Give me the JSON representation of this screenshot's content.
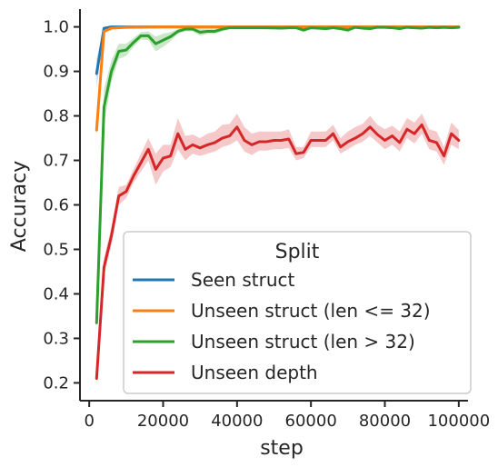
{
  "chart_data": {
    "type": "line",
    "title": "",
    "xlabel": "step",
    "ylabel": "Accuracy",
    "xlim": [
      -2500,
      102500
    ],
    "ylim": [
      0.16,
      1.04
    ],
    "xticks": [
      0,
      20000,
      40000,
      60000,
      80000,
      100000
    ],
    "yticks": [
      0.2,
      0.3,
      0.4,
      0.5,
      0.6,
      0.7,
      0.8,
      0.9,
      1.0
    ],
    "xtick_labels": [
      "0",
      "20000",
      "40000",
      "60000",
      "80000",
      "100000"
    ],
    "ytick_labels": [
      "0.2",
      "0.3",
      "0.4",
      "0.5",
      "0.6",
      "0.7",
      "0.8",
      "0.9",
      "1.0"
    ],
    "grid": false,
    "legend": {
      "title": "Split",
      "placement": "lower-right"
    },
    "series": [
      {
        "name": "Seen struct",
        "color": "#1f77b4",
        "x": [
          2000,
          4000,
          6000,
          10000,
          20000,
          40000,
          60000,
          80000,
          100000
        ],
        "y": [
          0.895,
          0.997,
          1.0,
          1.0,
          1.0,
          1.0,
          1.0,
          1.0,
          1.0
        ],
        "lower": [
          0.862,
          0.994,
          1.0,
          1.0,
          1.0,
          1.0,
          1.0,
          1.0,
          1.0
        ],
        "upper": [
          0.928,
          1.0,
          1.0,
          1.0,
          1.0,
          1.0,
          1.0,
          1.0,
          1.0
        ]
      },
      {
        "name": "Unseen struct (len <= 32)",
        "color": "#ff7f0e",
        "x": [
          2000,
          4000,
          6000,
          10000,
          20000,
          40000,
          60000,
          80000,
          100000
        ],
        "y": [
          0.768,
          0.99,
          0.997,
          0.999,
          1.0,
          1.0,
          1.0,
          1.0,
          1.0
        ],
        "lower": [
          0.75,
          0.985,
          0.995,
          0.998,
          1.0,
          1.0,
          1.0,
          1.0,
          1.0
        ],
        "upper": [
          0.786,
          0.995,
          0.999,
          1.0,
          1.0,
          1.0,
          1.0,
          1.0,
          1.0
        ]
      },
      {
        "name": "Unseen struct (len > 32)",
        "color": "#2ca02c",
        "x": [
          2000,
          4000,
          6000,
          8000,
          10000,
          12000,
          14000,
          16000,
          18000,
          20000,
          22000,
          24000,
          26000,
          28000,
          30000,
          32000,
          34000,
          36000,
          38000,
          40000,
          44000,
          48000,
          52000,
          54000,
          56000,
          58000,
          60000,
          62000,
          64000,
          66000,
          68000,
          70000,
          72000,
          74000,
          76000,
          78000,
          80000,
          82000,
          84000,
          86000,
          88000,
          90000,
          92000,
          94000,
          96000,
          98000,
          100000
        ],
        "y": [
          0.335,
          0.82,
          0.9,
          0.945,
          0.948,
          0.965,
          0.98,
          0.98,
          0.962,
          0.97,
          0.978,
          0.99,
          0.995,
          0.995,
          0.988,
          0.99,
          0.99,
          0.995,
          0.998,
          0.998,
          0.998,
          0.998,
          0.997,
          0.998,
          0.998,
          0.993,
          0.998,
          0.997,
          0.996,
          0.998,
          0.996,
          0.993,
          0.999,
          0.997,
          0.996,
          0.999,
          0.999,
          0.998,
          0.996,
          0.999,
          0.998,
          0.997,
          0.999,
          0.998,
          0.999,
          0.998,
          0.999
        ],
        "lower": [
          0.325,
          0.78,
          0.875,
          0.928,
          0.935,
          0.955,
          0.972,
          0.97,
          0.945,
          0.955,
          0.968,
          0.985,
          0.99,
          0.99,
          0.98,
          0.984,
          0.984,
          0.99,
          0.995,
          0.995,
          0.995,
          0.995,
          0.994,
          0.995,
          0.995,
          0.988,
          0.995,
          0.994,
          0.992,
          0.995,
          0.992,
          0.988,
          0.997,
          0.994,
          0.992,
          0.997,
          0.997,
          0.995,
          0.992,
          0.997,
          0.995,
          0.994,
          0.997,
          0.995,
          0.997,
          0.995,
          0.997
        ],
        "upper": [
          0.345,
          0.86,
          0.925,
          0.962,
          0.962,
          0.975,
          0.988,
          0.99,
          0.978,
          0.985,
          0.988,
          0.995,
          1.0,
          1.0,
          0.996,
          0.996,
          0.996,
          1.0,
          1.0,
          1.0,
          1.0,
          1.0,
          1.0,
          1.0,
          1.0,
          0.998,
          1.0,
          1.0,
          1.0,
          1.0,
          1.0,
          0.998,
          1.0,
          1.0,
          1.0,
          1.0,
          1.0,
          1.0,
          1.0,
          1.0,
          1.0,
          1.0,
          1.0,
          1.0,
          1.0,
          1.0,
          1.0
        ]
      },
      {
        "name": "Unseen depth",
        "color": "#d62728",
        "x": [
          2000,
          4000,
          6000,
          8000,
          10000,
          12000,
          14000,
          16000,
          18000,
          20000,
          22000,
          24000,
          26000,
          28000,
          30000,
          32000,
          34000,
          36000,
          38000,
          40000,
          42000,
          44000,
          46000,
          48000,
          50000,
          52000,
          54000,
          56000,
          58000,
          60000,
          62000,
          64000,
          66000,
          68000,
          70000,
          72000,
          74000,
          76000,
          78000,
          80000,
          82000,
          84000,
          86000,
          88000,
          90000,
          92000,
          94000,
          96000,
          98000,
          100000
        ],
        "y": [
          0.21,
          0.46,
          0.53,
          0.62,
          0.63,
          0.665,
          0.695,
          0.725,
          0.68,
          0.705,
          0.71,
          0.76,
          0.725,
          0.735,
          0.728,
          0.735,
          0.74,
          0.75,
          0.755,
          0.775,
          0.745,
          0.735,
          0.742,
          0.742,
          0.745,
          0.745,
          0.748,
          0.715,
          0.718,
          0.745,
          0.745,
          0.745,
          0.76,
          0.73,
          0.742,
          0.75,
          0.76,
          0.775,
          0.758,
          0.745,
          0.755,
          0.74,
          0.77,
          0.76,
          0.78,
          0.745,
          0.74,
          0.71,
          0.76,
          0.745
        ],
        "lower": [
          0.2,
          0.44,
          0.51,
          0.6,
          0.615,
          0.65,
          0.675,
          0.7,
          0.645,
          0.675,
          0.685,
          0.725,
          0.7,
          0.715,
          0.71,
          0.715,
          0.72,
          0.73,
          0.735,
          0.745,
          0.72,
          0.712,
          0.722,
          0.722,
          0.725,
          0.725,
          0.728,
          0.7,
          0.705,
          0.73,
          0.73,
          0.73,
          0.745,
          0.715,
          0.725,
          0.735,
          0.742,
          0.755,
          0.74,
          0.725,
          0.735,
          0.72,
          0.75,
          0.738,
          0.76,
          0.725,
          0.72,
          0.69,
          0.735,
          0.725
        ],
        "upper": [
          0.22,
          0.48,
          0.55,
          0.64,
          0.645,
          0.68,
          0.715,
          0.75,
          0.715,
          0.735,
          0.735,
          0.795,
          0.755,
          0.758,
          0.75,
          0.76,
          0.765,
          0.78,
          0.782,
          0.805,
          0.775,
          0.76,
          0.765,
          0.765,
          0.765,
          0.765,
          0.77,
          0.73,
          0.73,
          0.765,
          0.765,
          0.765,
          0.78,
          0.75,
          0.765,
          0.775,
          0.782,
          0.8,
          0.78,
          0.77,
          0.778,
          0.765,
          0.795,
          0.785,
          0.805,
          0.77,
          0.765,
          0.73,
          0.785,
          0.768
        ]
      }
    ]
  }
}
